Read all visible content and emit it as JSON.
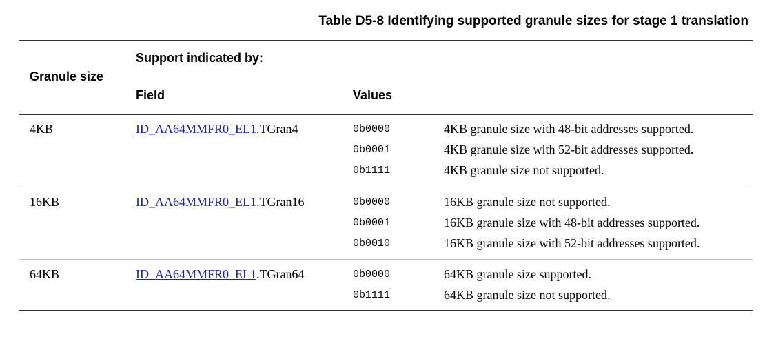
{
  "caption": "Table D5-8 Identifying supported granule sizes for stage 1 translation",
  "headers": {
    "granule_size": "Granule size",
    "support_indicated_by": "Support indicated by:",
    "field": "Field",
    "values": "Values"
  },
  "rows": [
    {
      "granule": "4KB",
      "field_link": "ID_AA64MMFR0_EL1",
      "field_suffix": ".TGran4",
      "entries": [
        {
          "value": "0b0000",
          "meaning": "4KB granule size with 48-bit addresses supported."
        },
        {
          "value": "0b0001",
          "meaning": "4KB granule size with 52-bit addresses supported."
        },
        {
          "value": "0b1111",
          "meaning": "4KB granule size not supported."
        }
      ]
    },
    {
      "granule": "16KB",
      "field_link": "ID_AA64MMFR0_EL1",
      "field_suffix": ".TGran16",
      "entries": [
        {
          "value": "0b0000",
          "meaning": "16KB granule size not supported."
        },
        {
          "value": "0b0001",
          "meaning": "16KB granule size with 48-bit addresses supported."
        },
        {
          "value": "0b0010",
          "meaning": "16KB granule size with 52-bit addresses supported."
        }
      ]
    },
    {
      "granule": "64KB",
      "field_link": "ID_AA64MMFR0_EL1",
      "field_suffix": ".TGran64",
      "entries": [
        {
          "value": "0b0000",
          "meaning": "64KB granule size supported."
        },
        {
          "value": "0b1111",
          "meaning": "64KB granule size not supported."
        }
      ]
    }
  ]
}
